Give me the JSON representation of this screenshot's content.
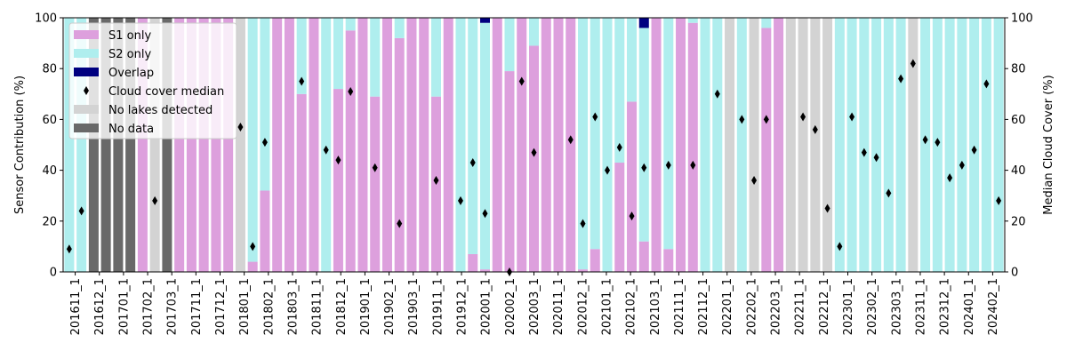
{
  "chart_data": {
    "type": "bar",
    "stacked": true,
    "ylabel_left": "Sensor Contribution (%)",
    "ylabel_right": "Median Cloud Cover (%)",
    "ylim": [
      0,
      100
    ],
    "y_ticks": [
      0,
      20,
      40,
      60,
      80,
      100
    ],
    "grid": false,
    "legend_location": "top-left",
    "legend": [
      "S1 only",
      "S2 only",
      "Overlap",
      "Cloud cover median",
      "No lakes detected",
      "No data"
    ],
    "x_tick_labels": [
      "201611_1",
      "201612_1",
      "201701_1",
      "201702_1",
      "201703_1",
      "201711_1",
      "201712_1",
      "201801_1",
      "201802_1",
      "201803_1",
      "201811_1",
      "201812_1",
      "201901_1",
      "201902_1",
      "201903_1",
      "201911_1",
      "201912_1",
      "202001_1",
      "202002_1",
      "202003_1",
      "202011_1",
      "202012_1",
      "202101_1",
      "202102_1",
      "202103_1",
      "202111_1",
      "202112_1",
      "202201_1",
      "202202_1",
      "202203_1",
      "202211_1",
      "202212_1",
      "202301_1",
      "202302_1",
      "202303_1",
      "202311_1",
      "202312_1",
      "202401_1",
      "202402_1"
    ],
    "colors": {
      "S1 only": "#dda0dd",
      "S2 only": "#afeeee",
      "Overlap": "#000080",
      "Cloud cover median": "#000000",
      "No lakes detected": "#d3d3d3",
      "No data": "#696969"
    },
    "bars": [
      {
        "status": "data",
        "s1": 0,
        "overlap": 0,
        "cloud": 9
      },
      {
        "status": "data",
        "s1": 0,
        "overlap": 0,
        "cloud": 24
      },
      {
        "status": "no_data",
        "s1": 0,
        "overlap": 0,
        "cloud": null
      },
      {
        "status": "no_data",
        "s1": 0,
        "overlap": 0,
        "cloud": null
      },
      {
        "status": "no_data",
        "s1": 0,
        "overlap": 0,
        "cloud": null
      },
      {
        "status": "no_data",
        "s1": 0,
        "overlap": 0,
        "cloud": null
      },
      {
        "status": "data",
        "s1": 100,
        "overlap": 0,
        "cloud": null
      },
      {
        "status": "no_lakes",
        "s1": 0,
        "overlap": 0,
        "cloud": 28
      },
      {
        "status": "no_data",
        "s1": 0,
        "overlap": 0,
        "cloud": null
      },
      {
        "status": "data",
        "s1": 100,
        "overlap": 0,
        "cloud": null
      },
      {
        "status": "data",
        "s1": 100,
        "overlap": 0,
        "cloud": null
      },
      {
        "status": "data",
        "s1": 100,
        "overlap": 0,
        "cloud": null
      },
      {
        "status": "data",
        "s1": 100,
        "overlap": 0,
        "cloud": null
      },
      {
        "status": "data",
        "s1": 100,
        "overlap": 0,
        "cloud": null
      },
      {
        "status": "no_lakes",
        "s1": 0,
        "overlap": 0,
        "cloud": 57
      },
      {
        "status": "data",
        "s1": 4,
        "overlap": 0,
        "cloud": 10
      },
      {
        "status": "data",
        "s1": 32,
        "overlap": 0,
        "cloud": 51
      },
      {
        "status": "data",
        "s1": 100,
        "overlap": 0,
        "cloud": null
      },
      {
        "status": "data",
        "s1": 100,
        "overlap": 0,
        "cloud": null
      },
      {
        "status": "data",
        "s1": 70,
        "overlap": 0,
        "cloud": 75
      },
      {
        "status": "data",
        "s1": 100,
        "overlap": 0,
        "cloud": null
      },
      {
        "status": "data",
        "s1": 0,
        "overlap": 0,
        "cloud": 48
      },
      {
        "status": "data",
        "s1": 72,
        "overlap": 0,
        "cloud": 44
      },
      {
        "status": "data",
        "s1": 95,
        "overlap": 0,
        "cloud": 71
      },
      {
        "status": "data",
        "s1": 100,
        "overlap": 0,
        "cloud": null
      },
      {
        "status": "data",
        "s1": 69,
        "overlap": 0,
        "cloud": 41
      },
      {
        "status": "data",
        "s1": 100,
        "overlap": 0,
        "cloud": null
      },
      {
        "status": "data",
        "s1": 92,
        "overlap": 0,
        "cloud": 19
      },
      {
        "status": "data",
        "s1": 100,
        "overlap": 0,
        "cloud": null
      },
      {
        "status": "data",
        "s1": 100,
        "overlap": 0,
        "cloud": null
      },
      {
        "status": "data",
        "s1": 69,
        "overlap": 0,
        "cloud": 36
      },
      {
        "status": "data",
        "s1": 100,
        "overlap": 0,
        "cloud": null
      },
      {
        "status": "data",
        "s1": 0,
        "overlap": 0,
        "cloud": 28
      },
      {
        "status": "data",
        "s1": 7,
        "overlap": 0,
        "cloud": 43
      },
      {
        "status": "data",
        "s1": 1,
        "overlap": 2,
        "cloud": 23
      },
      {
        "status": "data",
        "s1": 100,
        "overlap": 0,
        "cloud": null
      },
      {
        "status": "data",
        "s1": 79,
        "overlap": 0,
        "cloud": 0
      },
      {
        "status": "data",
        "s1": 100,
        "overlap": 0,
        "cloud": 75
      },
      {
        "status": "data",
        "s1": 89,
        "overlap": 0,
        "cloud": 47
      },
      {
        "status": "data",
        "s1": 100,
        "overlap": 0,
        "cloud": null
      },
      {
        "status": "data",
        "s1": 100,
        "overlap": 0,
        "cloud": null
      },
      {
        "status": "data",
        "s1": 100,
        "overlap": 0,
        "cloud": 52
      },
      {
        "status": "data",
        "s1": 1,
        "overlap": 0,
        "cloud": 19
      },
      {
        "status": "data",
        "s1": 9,
        "overlap": 0,
        "cloud": 61
      },
      {
        "status": "data",
        "s1": 0,
        "overlap": 0,
        "cloud": 40
      },
      {
        "status": "data",
        "s1": 43,
        "overlap": 0,
        "cloud": 49
      },
      {
        "status": "data",
        "s1": 67,
        "overlap": 0,
        "cloud": 22
      },
      {
        "status": "data",
        "s1": 12,
        "overlap": 4,
        "cloud": 41
      },
      {
        "status": "data",
        "s1": 100,
        "overlap": 0,
        "cloud": null
      },
      {
        "status": "data",
        "s1": 9,
        "overlap": 0,
        "cloud": 42
      },
      {
        "status": "data",
        "s1": 100,
        "overlap": 0,
        "cloud": null
      },
      {
        "status": "data",
        "s1": 98,
        "overlap": 0,
        "cloud": 42
      },
      {
        "status": "data",
        "s1": 0,
        "overlap": 0,
        "cloud": null
      },
      {
        "status": "data",
        "s1": 0,
        "overlap": 0,
        "cloud": 70
      },
      {
        "status": "no_lakes",
        "s1": 0,
        "overlap": 0,
        "cloud": null
      },
      {
        "status": "data",
        "s1": 0,
        "overlap": 0,
        "cloud": 60
      },
      {
        "status": "no_lakes",
        "s1": 0,
        "overlap": 0,
        "cloud": 36
      },
      {
        "status": "data",
        "s1": 96,
        "overlap": 0,
        "cloud": 60
      },
      {
        "status": "data",
        "s1": 100,
        "overlap": 0,
        "cloud": null
      },
      {
        "status": "no_lakes",
        "s1": 0,
        "overlap": 0,
        "cloud": null
      },
      {
        "status": "no_lakes",
        "s1": 0,
        "overlap": 0,
        "cloud": 61
      },
      {
        "status": "no_lakes",
        "s1": 0,
        "overlap": 0,
        "cloud": 56
      },
      {
        "status": "no_lakes",
        "s1": 0,
        "overlap": 0,
        "cloud": 25
      },
      {
        "status": "data",
        "s1": 0,
        "overlap": 0,
        "cloud": 10
      },
      {
        "status": "data",
        "s1": 0,
        "overlap": 0,
        "cloud": 61
      },
      {
        "status": "data",
        "s1": 0,
        "overlap": 0,
        "cloud": 47
      },
      {
        "status": "data",
        "s1": 0,
        "overlap": 0,
        "cloud": 45
      },
      {
        "status": "data",
        "s1": 0,
        "overlap": 0,
        "cloud": 31
      },
      {
        "status": "data",
        "s1": 0,
        "overlap": 0,
        "cloud": 76
      },
      {
        "status": "no_lakes",
        "s1": 0,
        "overlap": 0,
        "cloud": 82
      },
      {
        "status": "data",
        "s1": 0,
        "overlap": 0,
        "cloud": 52
      },
      {
        "status": "data",
        "s1": 0,
        "overlap": 0,
        "cloud": 51
      },
      {
        "status": "data",
        "s1": 0,
        "overlap": 0,
        "cloud": 37
      },
      {
        "status": "data",
        "s1": 0,
        "overlap": 0,
        "cloud": 42
      },
      {
        "status": "data",
        "s1": 0,
        "overlap": 0,
        "cloud": 48
      },
      {
        "status": "data",
        "s1": 0,
        "overlap": 0,
        "cloud": 74
      },
      {
        "status": "data",
        "s1": 0,
        "overlap": 0,
        "cloud": 28
      }
    ]
  }
}
